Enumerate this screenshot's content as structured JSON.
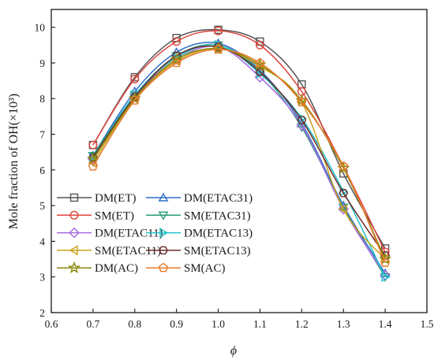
{
  "chart_data": {
    "type": "line",
    "title": "",
    "xlabel": "ϕ",
    "ylabel": "Mole fraction of OH(×10³)",
    "xlim": [
      0.6,
      1.5
    ],
    "ylim": [
      2,
      10.5
    ],
    "x_ticks": [
      "0.6",
      "0.7",
      "0.8",
      "0.9",
      "1.0",
      "1.1",
      "1.2",
      "1.3",
      "1.4",
      "1.5"
    ],
    "y_ticks": [
      "2",
      "3",
      "4",
      "5",
      "6",
      "7",
      "8",
      "9",
      "10"
    ],
    "grid": false,
    "legend_position": "lower-left",
    "legend_columns": 2,
    "x": [
      0.7,
      0.8,
      0.9,
      1.0,
      1.1,
      1.2,
      1.3,
      1.4
    ],
    "series": [
      {
        "name": "DM(ET)",
        "color": "#555555",
        "marker": "square",
        "values": [
          6.7,
          8.6,
          9.7,
          9.93,
          9.6,
          8.4,
          5.9,
          3.8
        ]
      },
      {
        "name": "DM(ETAC31)",
        "color": "#2e6dc7",
        "marker": "triangle-up",
        "values": [
          6.4,
          8.2,
          9.3,
          9.55,
          8.8,
          7.3,
          5.0,
          3.1
        ]
      },
      {
        "name": "SM(ET)",
        "color": "#e0453c",
        "marker": "circle",
        "values": [
          6.7,
          8.55,
          9.6,
          9.9,
          9.5,
          8.2,
          6.1,
          3.7
        ]
      },
      {
        "name": "SM(ETAC31)",
        "color": "#2a9d75",
        "marker": "triangle-down",
        "values": [
          6.4,
          8.1,
          9.2,
          9.5,
          8.75,
          7.2,
          4.95,
          3.0
        ]
      },
      {
        "name": "DM(ETAC11)",
        "color": "#a66be0",
        "marker": "diamond",
        "values": [
          6.3,
          8.05,
          9.1,
          9.45,
          8.6,
          7.25,
          4.9,
          3.05
        ]
      },
      {
        "name": "DM(ETAC13)",
        "color": "#1fc1c9",
        "marker": "triangle-right",
        "values": [
          6.35,
          8.1,
          9.15,
          9.5,
          8.7,
          7.45,
          5.4,
          3.0
        ]
      },
      {
        "name": "SM(ETAC11)",
        "color": "#c9a21a",
        "marker": "triangle-left",
        "values": [
          6.2,
          8.0,
          9.05,
          9.4,
          8.9,
          7.9,
          4.9,
          3.5
        ]
      },
      {
        "name": "SM(ETAC13)",
        "color": "#6b2a2a",
        "marker": "hexagon",
        "values": [
          6.35,
          8.05,
          9.2,
          9.45,
          8.75,
          7.4,
          5.35,
          3.6
        ]
      },
      {
        "name": "DM(AC)",
        "color": "#8a8a10",
        "marker": "star",
        "values": [
          6.3,
          8.0,
          9.1,
          9.4,
          8.95,
          7.95,
          6.05,
          3.5
        ]
      },
      {
        "name": "SM(AC)",
        "color": "#e8792a",
        "marker": "pentagon",
        "values": [
          6.1,
          7.95,
          9.0,
          9.38,
          9.0,
          7.9,
          6.1,
          3.4
        ]
      }
    ]
  }
}
